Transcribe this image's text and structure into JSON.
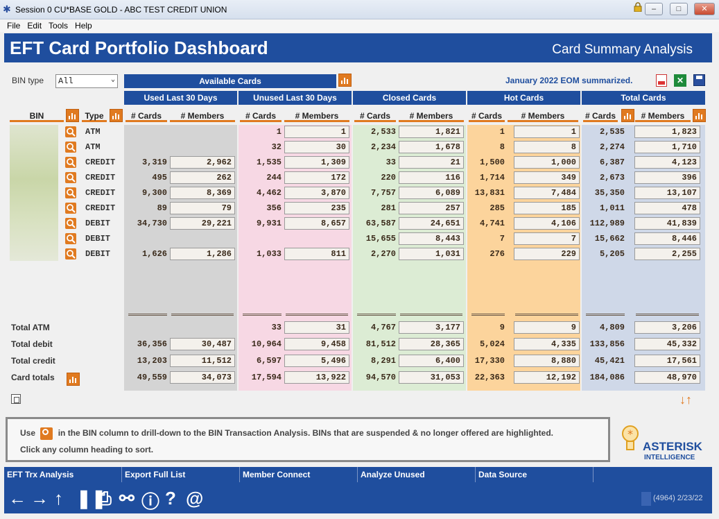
{
  "window": {
    "title": "Session 0 CU*BASE GOLD - ABC TEST CREDIT UNION",
    "min_label": "▭",
    "max_label": "□",
    "close_label": "✕"
  },
  "menu": [
    "File",
    "Edit",
    "Tools",
    "Help"
  ],
  "header": {
    "title": "EFT Card Portfolio Dashboard",
    "subtitle": "Card Summary Analysis"
  },
  "controls": {
    "bin_type_label": "BIN type",
    "bin_type_value": "All",
    "available_cards_label": "Available Cards",
    "status_text": "January 2022 EOM summarized."
  },
  "groups": [
    "Used Last 30 Days",
    "Unused Last 30 Days",
    "Closed Cards",
    "Hot Cards",
    "Total Cards"
  ],
  "columns": {
    "bin": "BIN",
    "type": "Type",
    "cards": "# Cards",
    "members": "# Members"
  },
  "rows": [
    {
      "type": "ATM",
      "used": [
        "",
        ""
      ],
      "unused": [
        "1",
        "1"
      ],
      "closed": [
        "2,533",
        "1,821"
      ],
      "hot": [
        "1",
        "1"
      ],
      "total": [
        "2,535",
        "1,823"
      ]
    },
    {
      "type": "ATM",
      "used": [
        "",
        ""
      ],
      "unused": [
        "32",
        "30"
      ],
      "closed": [
        "2,234",
        "1,678"
      ],
      "hot": [
        "8",
        "8"
      ],
      "total": [
        "2,274",
        "1,710"
      ]
    },
    {
      "type": "CREDIT",
      "used": [
        "3,319",
        "2,962"
      ],
      "unused": [
        "1,535",
        "1,309"
      ],
      "closed": [
        "33",
        "21"
      ],
      "hot": [
        "1,500",
        "1,000"
      ],
      "total": [
        "6,387",
        "4,123"
      ]
    },
    {
      "type": "CREDIT",
      "used": [
        "495",
        "262"
      ],
      "unused": [
        "244",
        "172"
      ],
      "closed": [
        "220",
        "116"
      ],
      "hot": [
        "1,714",
        "349"
      ],
      "total": [
        "2,673",
        "396"
      ]
    },
    {
      "type": "CREDIT",
      "used": [
        "9,300",
        "8,369"
      ],
      "unused": [
        "4,462",
        "3,870"
      ],
      "closed": [
        "7,757",
        "6,089"
      ],
      "hot": [
        "13,831",
        "7,484"
      ],
      "total": [
        "35,350",
        "13,107"
      ]
    },
    {
      "type": "CREDIT",
      "used": [
        "89",
        "79"
      ],
      "unused": [
        "356",
        "235"
      ],
      "closed": [
        "281",
        "257"
      ],
      "hot": [
        "285",
        "185"
      ],
      "total": [
        "1,011",
        "478"
      ]
    },
    {
      "type": "DEBIT",
      "used": [
        "34,730",
        "29,221"
      ],
      "unused": [
        "9,931",
        "8,657"
      ],
      "closed": [
        "63,587",
        "24,651"
      ],
      "hot": [
        "4,741",
        "4,106"
      ],
      "total": [
        "112,989",
        "41,839"
      ]
    },
    {
      "type": "DEBIT",
      "used": [
        "",
        ""
      ],
      "unused": [
        "",
        ""
      ],
      "closed": [
        "15,655",
        "8,443"
      ],
      "hot": [
        "7",
        "7"
      ],
      "total": [
        "15,662",
        "8,446"
      ]
    },
    {
      "type": "DEBIT",
      "used": [
        "1,626",
        "1,286"
      ],
      "unused": [
        "1,033",
        "811"
      ],
      "closed": [
        "2,270",
        "1,031"
      ],
      "hot": [
        "276",
        "229"
      ],
      "total": [
        "5,205",
        "2,255"
      ]
    }
  ],
  "totals": [
    {
      "label": "Total ATM",
      "used": [
        "",
        ""
      ],
      "unused": [
        "33",
        "31"
      ],
      "closed": [
        "4,767",
        "3,177"
      ],
      "hot": [
        "9",
        "9"
      ],
      "total": [
        "4,809",
        "3,206"
      ]
    },
    {
      "label": "Total debit",
      "used": [
        "36,356",
        "30,487"
      ],
      "unused": [
        "10,964",
        "9,458"
      ],
      "closed": [
        "81,512",
        "28,365"
      ],
      "hot": [
        "5,024",
        "4,335"
      ],
      "total": [
        "133,856",
        "45,332"
      ]
    },
    {
      "label": "Total credit",
      "used": [
        "13,203",
        "11,512"
      ],
      "unused": [
        "6,597",
        "5,496"
      ],
      "closed": [
        "8,291",
        "6,400"
      ],
      "hot": [
        "17,330",
        "8,880"
      ],
      "total": [
        "45,421",
        "17,561"
      ]
    },
    {
      "label": "Card totals",
      "used": [
        "49,559",
        "34,073"
      ],
      "unused": [
        "17,594",
        "13,922"
      ],
      "closed": [
        "94,570",
        "31,053"
      ],
      "hot": [
        "22,363",
        "12,192"
      ],
      "total": [
        "184,086",
        "48,970"
      ]
    }
  ],
  "info": {
    "line1_pre": "Use",
    "line1_post": "in the BIN column to drill-down to the BIN Transaction Analysis. BINs that are suspended & no longer offered are highlighted.",
    "line2": "Click any column heading to sort."
  },
  "brand": {
    "name": "ASTERISK",
    "sub": "INTELLIGENCE"
  },
  "functions": [
    "EFT Trx Analysis",
    "Export Full List",
    "Member Connect",
    "Analyze Unused",
    "Data Source"
  ],
  "footer_code": "(4964) 2/23/22",
  "colors": {
    "accent": "#1f4e9e",
    "orange": "#e07a20",
    "used_bg": "#d4d4d4",
    "unused_bg": "#f7d8e4",
    "closed_bg": "#dcecd4",
    "hot_bg": "#fcd49c",
    "total_bg": "#cfd8e8"
  }
}
